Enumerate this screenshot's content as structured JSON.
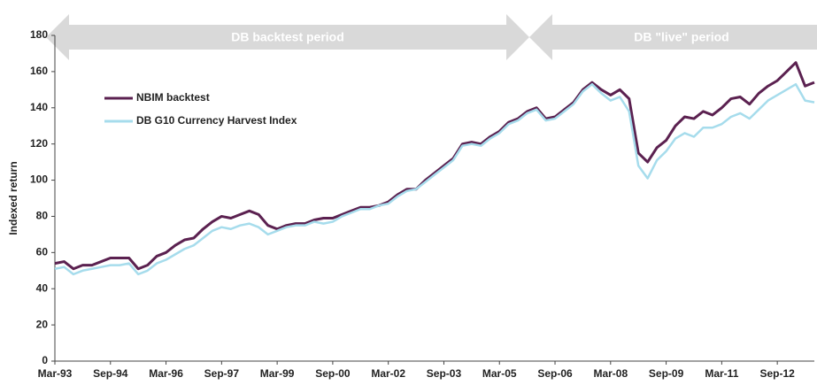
{
  "chart_data": {
    "type": "line",
    "y_label": "Indexed return",
    "annotations": [
      "DB backtest period",
      "DB \"live\" period"
    ],
    "categories": [
      "Mar-93",
      null,
      null,
      null,
      null,
      null,
      "Sep-94",
      null,
      null,
      null,
      null,
      null,
      "Mar-96",
      null,
      null,
      null,
      null,
      null,
      "Sep-97",
      null,
      null,
      null,
      null,
      null,
      "Mar-99",
      null,
      null,
      null,
      null,
      null,
      "Sep-00",
      null,
      null,
      null,
      null,
      null,
      "Mar-02",
      null,
      null,
      null,
      null,
      null,
      "Sep-03",
      null,
      null,
      null,
      null,
      null,
      "Mar-05",
      null,
      null,
      null,
      null,
      null,
      "Sep-06",
      null,
      null,
      null,
      null,
      null,
      "Mar-08",
      null,
      null,
      null,
      null,
      null,
      "Sep-09",
      null,
      null,
      null,
      null,
      null,
      "Mar-11",
      null,
      null,
      null,
      null,
      null,
      "Sep-12",
      null,
      null,
      null,
      null
    ],
    "series": [
      {
        "name": "NBIM backtest",
        "color": "#5b2150",
        "values": [
          54,
          55,
          51,
          53,
          53,
          55,
          57,
          57,
          57,
          51,
          53,
          58,
          60,
          64,
          67,
          68,
          73,
          77,
          80,
          79,
          81,
          83,
          81,
          75,
          73,
          75,
          76,
          76,
          78,
          79,
          79,
          81,
          83,
          85,
          85,
          86,
          88,
          92,
          95,
          95,
          100,
          104,
          108,
          112,
          120,
          121,
          120,
          124,
          127,
          132,
          134,
          138,
          140,
          134,
          135,
          139,
          143,
          150,
          154,
          150,
          147,
          150,
          145,
          115,
          110,
          118,
          122,
          130,
          135,
          134,
          138,
          136,
          140,
          145,
          146,
          142,
          148,
          152,
          155,
          160,
          165,
          152,
          154
        ]
      },
      {
        "name": "DB G10 Currency Harvest Index",
        "color": "#a6dcec",
        "values": [
          51,
          52,
          48,
          50,
          51,
          52,
          53,
          53,
          54,
          48,
          50,
          54,
          56,
          59,
          62,
          64,
          68,
          72,
          74,
          73,
          75,
          76,
          74,
          70,
          72,
          74,
          75,
          75,
          77,
          76,
          77,
          80,
          82,
          84,
          84,
          86,
          87,
          91,
          94,
          95,
          99,
          103,
          107,
          111,
          119,
          120,
          119,
          123,
          126,
          131,
          133,
          137,
          139,
          133,
          134,
          138,
          142,
          149,
          153,
          148,
          144,
          146,
          138,
          108,
          101,
          111,
          116,
          123,
          126,
          124,
          129,
          129,
          131,
          135,
          137,
          134,
          139,
          144,
          147,
          150,
          153,
          144,
          143
        ]
      }
    ],
    "ylim": [
      0,
      180
    ],
    "yticks": [
      0,
      20,
      40,
      60,
      80,
      100,
      120,
      140,
      160,
      180
    ],
    "grid": false
  }
}
